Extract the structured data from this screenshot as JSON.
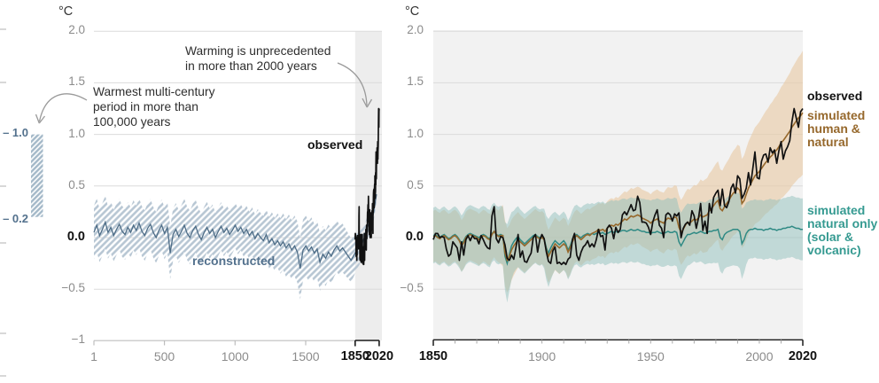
{
  "colors": {
    "recon_line": "#4e6d87",
    "recon_band": "#b7c6d3",
    "recon_label": "#53718d",
    "observed_line": "#111111",
    "highlight_band": "#ededed",
    "right_bg": "#f2f2f2",
    "grid": "#dbdbdb",
    "hn_line": "#96682c",
    "hn_band": "#e9c9a4",
    "hn_label": "#96682c",
    "nat_line": "#2f8a84",
    "nat_band": "#8fc0bc",
    "nat_label": "#359a91",
    "axis_gray": "#bdbdbd",
    "tick_label": "#8c8c8c",
    "bold_label": "#111111",
    "arrow": "#9a9a9a"
  },
  "chart_data": [
    {
      "type": "line",
      "panel": "left",
      "unit": "°C",
      "xlim": [
        1,
        2020
      ],
      "ylim": [
        -1,
        2
      ],
      "grid": "on",
      "x_ticks": [
        {
          "year": 1,
          "label": "1"
        },
        {
          "year": 500,
          "label": "500"
        },
        {
          "year": 1000,
          "label": "1000"
        },
        {
          "year": 1500,
          "label": "1500"
        },
        {
          "year": 1850,
          "label": "1850",
          "bold": true
        },
        {
          "year": 2020,
          "label": "2020",
          "bold": true
        }
      ],
      "y_ticks": [
        {
          "value": 2.0,
          "label": "2.0"
        },
        {
          "value": 1.5,
          "label": "1.5"
        },
        {
          "value": 1.0,
          "label": "1.0"
        },
        {
          "value": 0.5,
          "label": "0.5"
        },
        {
          "value": 0.0,
          "label": "0.0",
          "bold": true
        },
        {
          "value": -0.5,
          "label": "−0.5"
        },
        {
          "value": -1.0,
          "label": "−1"
        }
      ],
      "highlight_span": [
        1850,
        2020
      ],
      "annotations": {
        "unprecedented": "Warming is unprecedented\nin more than 2000 years",
        "warmest": "Warmest multi-century\nperiod in more than\n100,000 years",
        "observed": "observed",
        "reconstructed": "reconstructed"
      },
      "reference_bar": {
        "value_top": 1.0,
        "value_bottom": 0.2,
        "top_label": "– 1.0",
        "bottom_label": "– 0.2"
      },
      "series": [
        {
          "name": "reconstructed",
          "x_start": 1,
          "x_step": 20,
          "values": [
            0.05,
            0.12,
            0.02,
            0.08,
            0.15,
            0.05,
            0.1,
            0.02,
            0.08,
            0.13,
            0.06,
            0.03,
            0.1,
            0.05,
            0.12,
            0.07,
            0.14,
            0.06,
            0.02,
            0.09,
            0.13,
            0.05,
            0.0,
            0.07,
            0.12,
            0.04,
            0.1,
            -0.15,
            0.03,
            0.08,
            0.01,
            0.06,
            0.12,
            0.04,
            0.0,
            0.07,
            0.11,
            0.03,
            -0.02,
            0.05,
            0.1,
            0.04,
            0.08,
            0.0,
            0.06,
            0.11,
            0.05,
            0.09,
            0.03,
            0.07,
            0.12,
            0.06,
            0.1,
            0.04,
            0.08,
            0.02,
            0.06,
            -0.01,
            0.04,
            0.0,
            -0.03,
            0.03,
            -0.05,
            -0.01,
            -0.07,
            -0.03,
            -0.08,
            -0.04,
            -0.1,
            -0.06,
            -0.12,
            -0.08,
            -0.14,
            -0.3,
            -0.12,
            -0.08,
            -0.13,
            -0.09,
            -0.15,
            -0.11,
            -0.24,
            -0.16,
            -0.2,
            -0.14,
            -0.18,
            -0.12,
            -0.08,
            -0.13,
            -0.1,
            -0.14,
            -0.18,
            -0.22,
            -0.17,
            -0.12,
            -0.1,
            -0.05,
            0.02,
            0.12,
            0.1,
            0.25,
            0.42
          ],
          "band_half_width": [
            [
              1,
              0.26
            ],
            [
              300,
              0.24
            ],
            [
              700,
              0.26
            ],
            [
              1000,
              0.22
            ],
            [
              1200,
              0.24
            ],
            [
              1450,
              0.3
            ],
            [
              1700,
              0.26
            ],
            [
              1850,
              0.2
            ],
            [
              1900,
              0.14
            ],
            [
              1950,
              0.1
            ],
            [
              2001,
              0.08
            ]
          ]
        },
        {
          "name": "observed",
          "source": "right_panel_observed"
        }
      ]
    },
    {
      "type": "line",
      "panel": "right",
      "unit": "°C",
      "xlim": [
        1850,
        2020
      ],
      "ylim": [
        -1,
        2
      ],
      "grid": "on",
      "x_ticks": [
        {
          "year": 1850,
          "label": "1850",
          "bold": true
        },
        {
          "year": 1900,
          "label": "1900"
        },
        {
          "year": 1950,
          "label": "1950"
        },
        {
          "year": 2000,
          "label": "2000"
        },
        {
          "year": 2020,
          "label": "2020",
          "bold": true
        }
      ],
      "x_minor_tick_step": 10,
      "y_ticks": [
        {
          "value": 2.0,
          "label": "2.0"
        },
        {
          "value": 1.5,
          "label": "1.5"
        },
        {
          "value": 1.0,
          "label": "1.0"
        },
        {
          "value": 0.5,
          "label": "0.5"
        },
        {
          "value": 0.0,
          "label": "0.0",
          "bold": true
        },
        {
          "value": -0.5,
          "label": "−0.5"
        }
      ],
      "labels": {
        "observed": "observed",
        "human_natural": "simulated\nhuman &\nnatural",
        "natural_only": "simulated\nnatural only\n(solar &\nvolcanic)"
      },
      "series": [
        {
          "name": "observed",
          "x_start": 1850,
          "x_step": 1,
          "values": [
            -0.02,
            0.04,
            0.04,
            0.0,
            0.01,
            0.0,
            -0.11,
            -0.18,
            -0.16,
            -0.04,
            -0.07,
            -0.1,
            -0.22,
            -0.04,
            -0.17,
            -0.02,
            0.02,
            -0.03,
            0.02,
            -0.01,
            -0.01,
            -0.06,
            0.02,
            -0.02,
            -0.07,
            -0.1,
            -0.11,
            0.21,
            0.3,
            -0.01,
            -0.05,
            0.01,
            0.0,
            -0.07,
            -0.2,
            -0.22,
            -0.17,
            -0.21,
            -0.1,
            0.03,
            -0.19,
            -0.13,
            -0.23,
            -0.24,
            -0.19,
            -0.15,
            0.0,
            0.03,
            -0.14,
            -0.02,
            0.03,
            -0.01,
            -0.14,
            -0.23,
            -0.25,
            -0.13,
            -0.09,
            -0.25,
            -0.24,
            -0.26,
            -0.24,
            -0.26,
            -0.21,
            -0.19,
            -0.02,
            0.04,
            -0.17,
            -0.22,
            -0.14,
            -0.09,
            -0.07,
            -0.03,
            -0.09,
            -0.06,
            -0.09,
            -0.02,
            0.08,
            0.01,
            0.02,
            -0.12,
            0.09,
            0.12,
            0.09,
            -0.01,
            0.1,
            0.05,
            0.08,
            0.22,
            0.25,
            0.22,
            0.27,
            0.32,
            0.26,
            0.27,
            0.4,
            0.34,
            0.15,
            0.15,
            0.14,
            0.1,
            0.03,
            0.15,
            0.22,
            0.27,
            0.12,
            0.09,
            0.0,
            0.22,
            0.24,
            0.22,
            0.16,
            0.23,
            0.21,
            0.24,
            0.0,
            0.09,
            0.13,
            0.15,
            0.12,
            0.26,
            0.21,
            0.09,
            0.19,
            0.33,
            0.07,
            0.16,
            0.04,
            0.33,
            0.24,
            0.39,
            0.43,
            0.46,
            0.31,
            0.47,
            0.31,
            0.29,
            0.35,
            0.48,
            0.52,
            0.43,
            0.6,
            0.57,
            0.38,
            0.42,
            0.48,
            0.63,
            0.51,
            0.67,
            0.83,
            0.58,
            0.57,
            0.74,
            0.8,
            0.81,
            0.73,
            0.87,
            0.82,
            0.85,
            0.72,
            0.84,
            0.93,
            0.76,
            0.84,
            0.88,
            0.94,
            1.12,
            1.25,
            1.16,
            1.07,
            1.22,
            1.25
          ]
        },
        {
          "name": "simulated human & natural",
          "x_start": 1850,
          "x_step": 1,
          "values": [
            0.01,
            0.02,
            0.0,
            -0.01,
            0.01,
            0.02,
            0.0,
            -0.02,
            -0.01,
            0.01,
            0.02,
            0.0,
            -0.03,
            -0.08,
            -0.05,
            0.0,
            0.02,
            0.03,
            0.02,
            0.01,
            0.0,
            -0.02,
            0.0,
            0.02,
            0.01,
            -0.01,
            -0.02,
            0.03,
            0.06,
            0.03,
            0.01,
            0.02,
            0.02,
            -0.15,
            -0.22,
            -0.18,
            -0.12,
            -0.08,
            -0.05,
            -0.02,
            -0.04,
            -0.06,
            -0.08,
            -0.06,
            -0.04,
            -0.02,
            0.0,
            0.02,
            0.0,
            -0.01,
            0.0,
            -0.02,
            -0.12,
            -0.18,
            -0.14,
            -0.1,
            -0.06,
            -0.08,
            -0.1,
            -0.08,
            -0.06,
            -0.08,
            -0.14,
            -0.1,
            -0.04,
            0.0,
            0.02,
            0.0,
            -0.02,
            0.0,
            0.02,
            0.03,
            0.02,
            0.04,
            0.05,
            0.06,
            0.08,
            0.07,
            0.08,
            0.06,
            0.09,
            0.11,
            0.12,
            0.11,
            0.13,
            0.12,
            0.14,
            0.16,
            0.18,
            0.17,
            0.19,
            0.21,
            0.2,
            0.21,
            0.22,
            0.21,
            0.19,
            0.18,
            0.17,
            0.16,
            0.14,
            0.16,
            0.17,
            0.18,
            0.16,
            0.15,
            0.14,
            0.17,
            0.19,
            0.18,
            0.18,
            0.2,
            0.19,
            0.1,
            0.05,
            0.08,
            0.12,
            0.15,
            0.14,
            0.16,
            0.18,
            0.17,
            0.19,
            0.22,
            0.2,
            0.21,
            0.22,
            0.26,
            0.28,
            0.31,
            0.34,
            0.36,
            0.28,
            0.26,
            0.3,
            0.33,
            0.36,
            0.4,
            0.43,
            0.45,
            0.48,
            0.46,
            0.33,
            0.36,
            0.42,
            0.48,
            0.52,
            0.56,
            0.6,
            0.62,
            0.64,
            0.67,
            0.7,
            0.73,
            0.75,
            0.78,
            0.8,
            0.83,
            0.85,
            0.88,
            0.92,
            0.94,
            0.97,
            1.0,
            1.03,
            1.07,
            1.1,
            1.13,
            1.16,
            1.18,
            1.21
          ],
          "band_half_width": [
            [
              1850,
              0.25
            ],
            [
              1880,
              0.25
            ],
            [
              1883,
              0.32
            ],
            [
              1890,
              0.26
            ],
            [
              1920,
              0.25
            ],
            [
              1950,
              0.28
            ],
            [
              1970,
              0.33
            ],
            [
              1990,
              0.42
            ],
            [
              2000,
              0.48
            ],
            [
              2010,
              0.54
            ],
            [
              2020,
              0.6
            ]
          ]
        },
        {
          "name": "simulated natural only",
          "x_start": 1850,
          "x_step": 1,
          "values": [
            0.02,
            0.03,
            0.01,
            0.0,
            0.02,
            0.03,
            0.01,
            -0.01,
            0.0,
            0.02,
            0.03,
            0.01,
            -0.02,
            -0.06,
            -0.03,
            0.01,
            0.03,
            0.04,
            0.03,
            0.02,
            0.01,
            0.0,
            0.02,
            0.03,
            0.02,
            0.0,
            -0.01,
            0.04,
            0.06,
            0.03,
            0.02,
            0.03,
            0.02,
            -0.18,
            -0.25,
            -0.16,
            -0.08,
            -0.04,
            -0.01,
            0.01,
            -0.02,
            -0.04,
            -0.06,
            -0.04,
            -0.02,
            0.0,
            0.02,
            0.03,
            0.01,
            0.0,
            0.01,
            -0.01,
            -0.1,
            -0.15,
            -0.1,
            -0.06,
            -0.03,
            -0.05,
            -0.07,
            -0.05,
            -0.03,
            -0.06,
            -0.12,
            -0.08,
            -0.02,
            0.02,
            0.03,
            0.01,
            0.0,
            0.02,
            0.03,
            0.04,
            0.03,
            0.04,
            0.03,
            0.04,
            0.05,
            0.04,
            0.05,
            0.03,
            0.04,
            0.05,
            0.06,
            0.05,
            0.06,
            0.05,
            0.06,
            0.07,
            0.07,
            0.06,
            0.07,
            0.08,
            0.07,
            0.07,
            0.08,
            0.07,
            0.06,
            0.06,
            0.05,
            0.05,
            0.04,
            0.05,
            0.05,
            0.06,
            0.05,
            0.04,
            0.04,
            0.05,
            0.06,
            0.05,
            0.05,
            0.06,
            0.05,
            -0.04,
            -0.08,
            -0.04,
            0.0,
            0.03,
            0.03,
            0.04,
            0.05,
            0.04,
            0.05,
            0.06,
            0.05,
            0.04,
            0.05,
            0.06,
            0.06,
            0.07,
            0.07,
            0.08,
            0.0,
            -0.02,
            0.03,
            0.05,
            0.06,
            0.07,
            0.08,
            0.08,
            0.08,
            0.06,
            -0.06,
            -0.02,
            0.04,
            0.07,
            0.08,
            0.08,
            0.09,
            0.08,
            0.08,
            0.08,
            0.07,
            0.08,
            0.08,
            0.09,
            0.08,
            0.08,
            0.07,
            0.08,
            0.08,
            0.09,
            0.09,
            0.1,
            0.1,
            0.11,
            0.1,
            0.09,
            0.09,
            0.08,
            0.08
          ],
          "band_half_width": [
            [
              1850,
              0.27
            ],
            [
              1882,
              0.28
            ],
            [
              1884,
              0.38
            ],
            [
              1887,
              0.3
            ],
            [
              1900,
              0.27
            ],
            [
              1903,
              0.33
            ],
            [
              1906,
              0.28
            ],
            [
              1963,
              0.33
            ],
            [
              1970,
              0.28
            ],
            [
              1991,
              0.36
            ],
            [
              1995,
              0.28
            ],
            [
              2020,
              0.3
            ]
          ]
        }
      ]
    }
  ]
}
